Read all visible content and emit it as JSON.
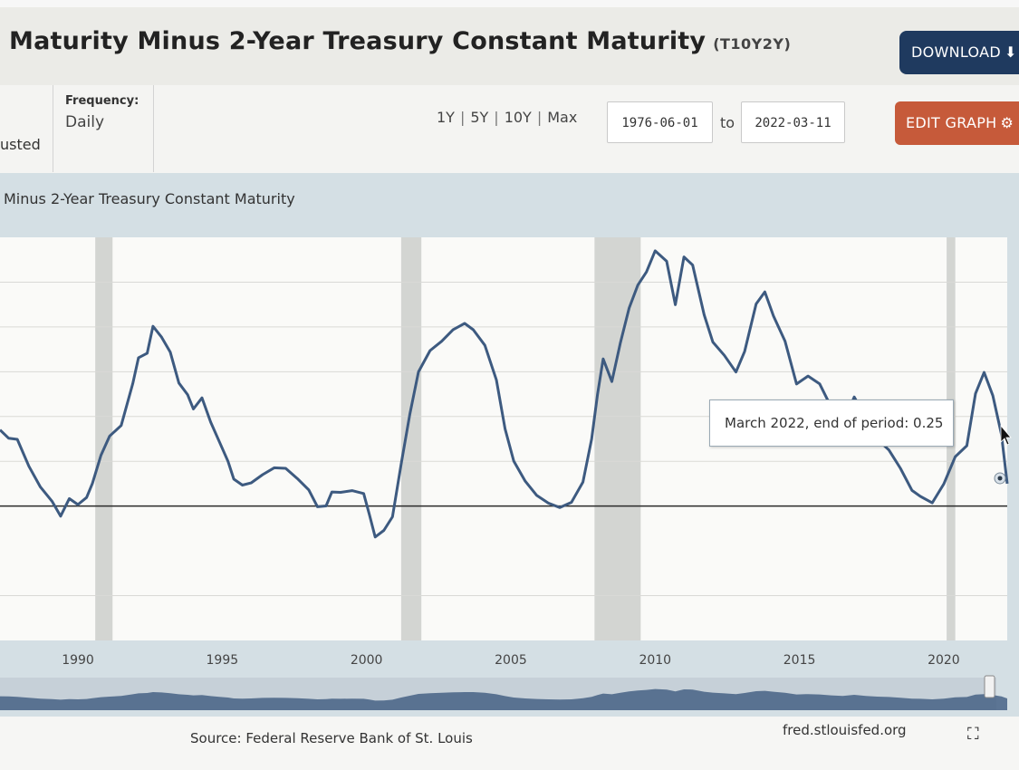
{
  "header": {
    "title": "Maturity Minus 2-Year Treasury Constant Maturity",
    "series_id": "(T10Y2Y)",
    "download_label": "DOWNLOAD"
  },
  "controls": {
    "units_tail": "usted",
    "frequency_label": "Frequency:",
    "frequency_value": "Daily",
    "range_links": [
      "1Y",
      "5Y",
      "10Y",
      "Max"
    ],
    "start_date": "1976-06-01",
    "to_label": "to",
    "end_date": "2022-03-11",
    "edit_graph_label": "EDIT GRAPH"
  },
  "chart_title": "Minus 2-Year Treasury Constant Maturity",
  "tooltip": "March 2022, end of period: 0.25",
  "footer": {
    "source": "Source: Federal Reserve Bank of St. Louis",
    "site": "fred.stlouisfed.org"
  },
  "icons": [
    "download-icon",
    "gear-icon",
    "fullscreen-icon",
    "cursor-icon"
  ],
  "colors": {
    "series_line": "#3d5a80",
    "recession_shade": "#d3d5d2",
    "download_bg": "#1f3a5f",
    "edit_bg": "#c65a3a"
  },
  "chart_data": {
    "type": "line",
    "title": "Minus 2-Year Treasury Constant Maturity",
    "x_tick_labels": [
      "1990",
      "1995",
      "2000",
      "2005",
      "2010",
      "2015",
      "2020"
    ],
    "xlim": [
      1987.3,
      2022.2
    ],
    "ylim": [
      -1.5,
      3.0
    ],
    "grid": true,
    "zero_line": true,
    "recessions": [
      [
        1990.6,
        1991.2
      ],
      [
        2001.2,
        2001.9
      ],
      [
        2007.9,
        2009.5
      ],
      [
        2020.1,
        2020.4
      ]
    ],
    "series": [
      {
        "values": [
          [
            1987.3,
            0.85
          ],
          [
            1987.6,
            0.8
          ],
          [
            1987.9,
            0.7
          ],
          [
            1988.3,
            0.45
          ],
          [
            1988.7,
            0.2
          ],
          [
            1989.1,
            0.05
          ],
          [
            1989.4,
            -0.1
          ],
          [
            1989.7,
            0.05
          ],
          [
            1990.0,
            0.0
          ],
          [
            1990.3,
            0.1
          ],
          [
            1990.5,
            0.3
          ],
          [
            1990.8,
            0.6
          ],
          [
            1991.1,
            0.75
          ],
          [
            1991.5,
            0.95
          ],
          [
            1991.9,
            1.4
          ],
          [
            1992.1,
            1.65
          ],
          [
            1992.4,
            1.75
          ],
          [
            1992.6,
            2.0
          ],
          [
            1992.9,
            1.9
          ],
          [
            1993.2,
            1.7
          ],
          [
            1993.5,
            1.4
          ],
          [
            1993.8,
            1.25
          ],
          [
            1994.0,
            1.1
          ],
          [
            1994.3,
            1.2
          ],
          [
            1994.6,
            0.9
          ],
          [
            1994.9,
            0.7
          ],
          [
            1995.2,
            0.5
          ],
          [
            1995.4,
            0.25
          ],
          [
            1995.7,
            0.2
          ],
          [
            1996.0,
            0.25
          ],
          [
            1996.4,
            0.4
          ],
          [
            1996.8,
            0.45
          ],
          [
            1997.2,
            0.4
          ],
          [
            1997.6,
            0.3
          ],
          [
            1998.0,
            0.15
          ],
          [
            1998.3,
            0.0
          ],
          [
            1998.6,
            0.05
          ],
          [
            1998.8,
            0.2
          ],
          [
            1999.1,
            0.15
          ],
          [
            1999.5,
            0.2
          ],
          [
            1999.9,
            0.15
          ],
          [
            2000.1,
            -0.05
          ],
          [
            2000.3,
            -0.35
          ],
          [
            2000.6,
            -0.3
          ],
          [
            2000.9,
            -0.1
          ],
          [
            2001.2,
            0.5
          ],
          [
            2001.5,
            1.0
          ],
          [
            2001.8,
            1.5
          ],
          [
            2002.2,
            1.7
          ],
          [
            2002.6,
            1.8
          ],
          [
            2003.0,
            1.95
          ],
          [
            2003.4,
            2.0
          ],
          [
            2003.7,
            2.0
          ],
          [
            2004.1,
            1.8
          ],
          [
            2004.5,
            1.4
          ],
          [
            2004.8,
            0.9
          ],
          [
            2005.1,
            0.5
          ],
          [
            2005.5,
            0.25
          ],
          [
            2005.9,
            0.1
          ],
          [
            2006.3,
            0.0
          ],
          [
            2006.7,
            -0.05
          ],
          [
            2007.1,
            0.0
          ],
          [
            2007.5,
            0.3
          ],
          [
            2007.8,
            0.7
          ],
          [
            2008.0,
            1.2
          ],
          [
            2008.2,
            1.6
          ],
          [
            2008.5,
            1.4
          ],
          [
            2008.8,
            1.8
          ],
          [
            2009.1,
            2.2
          ],
          [
            2009.4,
            2.45
          ],
          [
            2009.7,
            2.6
          ],
          [
            2010.0,
            2.85
          ],
          [
            2010.4,
            2.7
          ],
          [
            2010.7,
            2.2
          ],
          [
            2011.0,
            2.75
          ],
          [
            2011.3,
            2.7
          ],
          [
            2011.7,
            2.1
          ],
          [
            2012.0,
            1.85
          ],
          [
            2012.4,
            1.65
          ],
          [
            2012.8,
            1.45
          ],
          [
            2013.1,
            1.75
          ],
          [
            2013.5,
            2.25
          ],
          [
            2013.8,
            2.35
          ],
          [
            2014.1,
            2.1
          ],
          [
            2014.5,
            1.8
          ],
          [
            2014.9,
            1.35
          ],
          [
            2015.3,
            1.45
          ],
          [
            2015.7,
            1.35
          ],
          [
            2016.1,
            1.1
          ],
          [
            2016.5,
            0.95
          ],
          [
            2016.9,
            1.25
          ],
          [
            2017.3,
            0.95
          ],
          [
            2017.7,
            0.75
          ],
          [
            2018.1,
            0.65
          ],
          [
            2018.5,
            0.45
          ],
          [
            2018.9,
            0.2
          ],
          [
            2019.2,
            0.15
          ],
          [
            2019.6,
            0.0
          ],
          [
            2020.0,
            0.2
          ],
          [
            2020.4,
            0.55
          ],
          [
            2020.8,
            0.65
          ],
          [
            2021.1,
            1.3
          ],
          [
            2021.4,
            1.45
          ],
          [
            2021.7,
            1.2
          ],
          [
            2022.0,
            0.8
          ],
          [
            2022.2,
            0.25
          ]
        ]
      }
    ]
  }
}
